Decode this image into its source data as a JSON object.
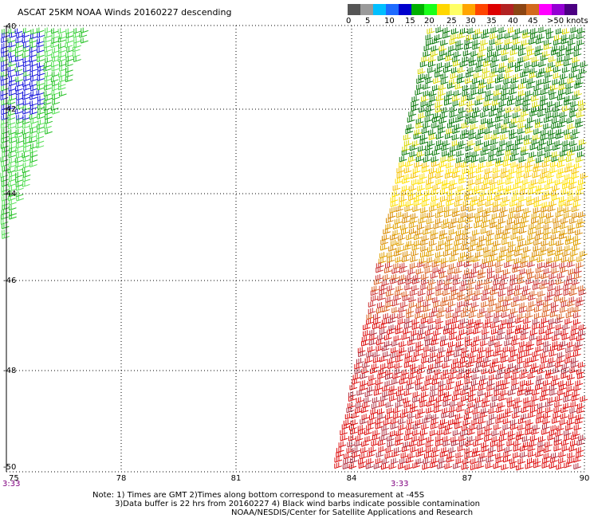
{
  "title": "ASCAT 25KM NOAA Winds 20160227 descending",
  "colorbar": {
    "colors": [
      "#555555",
      "#9a9a9a",
      "#00bfff",
      "#1e6bff",
      "#0000cd",
      "#00b000",
      "#1aff1a",
      "#ffd700",
      "#ffff66",
      "#ffa500",
      "#ff4500",
      "#dd0000",
      "#b22222",
      "#8b4513",
      "#d2691e",
      "#ff00ff",
      "#9400d3",
      "#4b0082"
    ],
    "labels": [
      "0",
      "5",
      "10",
      "15",
      "20",
      "25",
      "30",
      "35",
      "40",
      "45",
      "&gt;50 knots"
    ]
  },
  "axes": {
    "lat_labels": [
      "-40",
      "-42",
      "-44",
      "-46",
      "-48",
      "-50"
    ],
    "lon_labels": [
      "75",
      "78",
      "81",
      "84",
      "87",
      "90"
    ]
  },
  "time_labels": [
    "3:33",
    "3:33"
  ],
  "notes": {
    "line1": "Note: 1) Times are GMT 2)Times along bottom correspond to measurement at -45S",
    "line2": "3)Data buffer is 22 hrs from 20160227 4) Black wind barbs indicate possible contamination",
    "line3": "NOAA/NESDIS/Center for Satellite Applications and Research"
  }
}
